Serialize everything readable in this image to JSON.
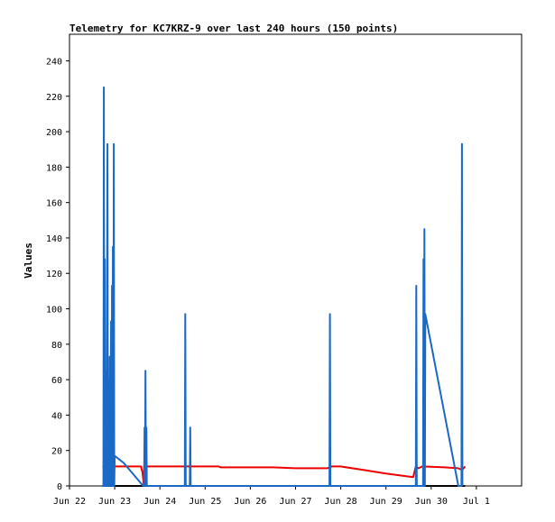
{
  "chart_data": {
    "type": "line",
    "title": "Telemetry for KC7KRZ-9 over last 240 hours (150 points)",
    "ylabel": "Values",
    "xlabel": "",
    "ylim": [
      0,
      255
    ],
    "xlim": [
      0,
      10
    ],
    "yticks": [
      0,
      20,
      40,
      60,
      80,
      100,
      120,
      140,
      160,
      180,
      200,
      220,
      240
    ],
    "xticks": [
      {
        "x": 0,
        "label": "Jun 22"
      },
      {
        "x": 1,
        "label": "Jun 23"
      },
      {
        "x": 2,
        "label": "Jun 24"
      },
      {
        "x": 3,
        "label": "Jun 25"
      },
      {
        "x": 4,
        "label": "Jun 26"
      },
      {
        "x": 5,
        "label": "Jun 27"
      },
      {
        "x": 6,
        "label": "Jun 28"
      },
      {
        "x": 7,
        "label": "Jun 29"
      },
      {
        "x": 8,
        "label": "Jun 30"
      },
      {
        "x": 9,
        "label": "Jul 1"
      }
    ],
    "grid": false,
    "legend": "none",
    "series": [
      {
        "color": "#ee0000",
        "points": [
          [
            0.73,
            11
          ],
          [
            0.76,
            11
          ],
          [
            1.0,
            11
          ],
          [
            1.5,
            11
          ],
          [
            1.58,
            11
          ],
          [
            1.61,
            8
          ],
          [
            1.63,
            4
          ],
          [
            1.64,
            1
          ],
          [
            1.65,
            11
          ],
          [
            1.8,
            11
          ],
          [
            2.5,
            11
          ],
          [
            3.3,
            11
          ],
          [
            3.35,
            10.5
          ],
          [
            4.5,
            10.5
          ],
          [
            5.0,
            10
          ],
          [
            5.7,
            10
          ],
          [
            5.8,
            11
          ],
          [
            6.0,
            11
          ],
          [
            6.5,
            9
          ],
          [
            7.0,
            7
          ],
          [
            7.6,
            5
          ],
          [
            7.66,
            11
          ],
          [
            7.72,
            10
          ],
          [
            7.8,
            11
          ],
          [
            8.3,
            10.5
          ],
          [
            8.6,
            10
          ],
          [
            8.68,
            9
          ],
          [
            8.75,
            11
          ]
        ]
      },
      {
        "color": "#000000",
        "points": [
          [
            0.73,
            0
          ],
          [
            8.75,
            0
          ]
        ]
      },
      {
        "color": "#1a69c4",
        "points": [
          [
            0.73,
            0
          ],
          [
            0.75,
            0
          ],
          [
            0.76,
            225
          ],
          [
            0.77,
            0
          ],
          [
            0.78,
            128
          ],
          [
            0.79,
            0
          ],
          [
            0.8,
            65
          ],
          [
            0.82,
            0
          ],
          [
            0.84,
            193
          ],
          [
            0.85,
            0
          ],
          [
            0.87,
            60
          ],
          [
            0.88,
            0
          ],
          [
            0.89,
            73
          ],
          [
            0.9,
            0
          ],
          [
            0.92,
            93
          ],
          [
            0.93,
            0
          ],
          [
            0.94,
            113
          ],
          [
            0.95,
            0
          ],
          [
            0.96,
            135
          ],
          [
            0.97,
            0
          ],
          [
            0.98,
            193
          ],
          [
            0.99,
            0
          ],
          [
            1.0,
            17
          ],
          [
            1.2,
            13
          ],
          [
            1.63,
            0
          ],
          [
            1.65,
            0
          ],
          [
            1.66,
            33
          ],
          [
            1.67,
            0
          ],
          [
            1.68,
            65
          ],
          [
            1.69,
            0
          ],
          [
            1.7,
            33
          ],
          [
            1.71,
            0
          ],
          [
            2.55,
            0
          ],
          [
            2.56,
            97
          ],
          [
            2.57,
            0
          ],
          [
            2.66,
            0
          ],
          [
            2.67,
            33
          ],
          [
            2.68,
            0
          ],
          [
            5.75,
            0
          ],
          [
            5.76,
            97
          ],
          [
            5.77,
            0
          ],
          [
            7.66,
            0
          ],
          [
            7.67,
            113
          ],
          [
            7.68,
            0
          ],
          [
            7.82,
            0
          ],
          [
            7.83,
            128
          ],
          [
            7.84,
            0
          ],
          [
            7.85,
            145
          ],
          [
            7.86,
            0
          ],
          [
            7.87,
            97
          ],
          [
            8.6,
            0
          ],
          [
            8.67,
            0
          ],
          [
            8.68,
            193
          ],
          [
            8.69,
            0
          ]
        ]
      }
    ]
  }
}
